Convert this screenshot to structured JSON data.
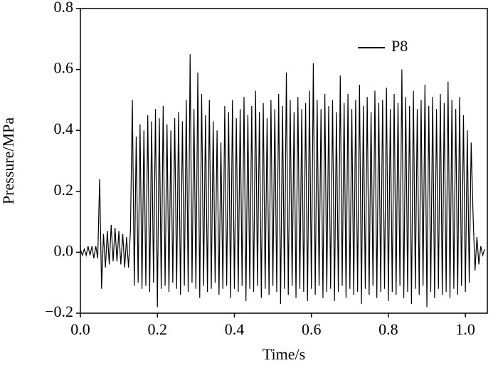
{
  "chart_data": {
    "type": "line",
    "xlabel": "Time/s",
    "ylabel": "Pressure/MPa",
    "xlim": [
      0,
      1.057
    ],
    "ylim": [
      -0.2,
      0.8
    ],
    "xticks": [
      {
        "value": 0,
        "label": "0.0"
      },
      {
        "value": 0.2,
        "label": "0.2"
      },
      {
        "value": 0.4,
        "label": "0.4"
      },
      {
        "value": 0.6,
        "label": "0.6"
      },
      {
        "value": 0.8,
        "label": "0.8"
      },
      {
        "value": 1,
        "label": "1.0"
      }
    ],
    "yticks": [
      {
        "value": -0.2,
        "label": "−0.2"
      },
      {
        "value": 0,
        "label": "0.0"
      },
      {
        "value": 0.2,
        "label": "0.2"
      },
      {
        "value": 0.4,
        "label": "0.4"
      },
      {
        "value": 0.6,
        "label": "0.6"
      },
      {
        "value": 0.8,
        "label": "0.8"
      }
    ],
    "legend": "upper right",
    "grid": false,
    "x": [
      0,
      0.005,
      0.01,
      0.015,
      0.02,
      0.025,
      0.03,
      0.035,
      0.04,
      0.045,
      0.05,
      0.055,
      0.06,
      0.065,
      0.07,
      0.075,
      0.08,
      0.085,
      0.09,
      0.095,
      0.1,
      0.105,
      0.11,
      0.115,
      0.12,
      0.125,
      0.13,
      0.135,
      0.14,
      0.145,
      0.15,
      0.155,
      0.16,
      0.165,
      0.17,
      0.175,
      0.18,
      0.185,
      0.19,
      0.195,
      0.2,
      0.205,
      0.21,
      0.215,
      0.22,
      0.225,
      0.23,
      0.235,
      0.24,
      0.245,
      0.25,
      0.255,
      0.26,
      0.265,
      0.27,
      0.275,
      0.28,
      0.285,
      0.29,
      0.295,
      0.3,
      0.305,
      0.31,
      0.315,
      0.32,
      0.325,
      0.33,
      0.335,
      0.34,
      0.345,
      0.35,
      0.355,
      0.36,
      0.365,
      0.37,
      0.375,
      0.38,
      0.385,
      0.39,
      0.395,
      0.4,
      0.405,
      0.41,
      0.415,
      0.42,
      0.425,
      0.43,
      0.435,
      0.44,
      0.445,
      0.45,
      0.455,
      0.46,
      0.465,
      0.47,
      0.475,
      0.48,
      0.485,
      0.49,
      0.495,
      0.5,
      0.505,
      0.51,
      0.515,
      0.52,
      0.525,
      0.53,
      0.535,
      0.54,
      0.545,
      0.55,
      0.555,
      0.56,
      0.565,
      0.57,
      0.575,
      0.58,
      0.585,
      0.59,
      0.595,
      0.6,
      0.605,
      0.61,
      0.615,
      0.62,
      0.625,
      0.63,
      0.635,
      0.64,
      0.645,
      0.65,
      0.655,
      0.66,
      0.665,
      0.67,
      0.675,
      0.68,
      0.685,
      0.69,
      0.695,
      0.7,
      0.705,
      0.71,
      0.715,
      0.72,
      0.725,
      0.73,
      0.735,
      0.74,
      0.745,
      0.75,
      0.755,
      0.76,
      0.765,
      0.77,
      0.775,
      0.78,
      0.785,
      0.79,
      0.795,
      0.8,
      0.805,
      0.81,
      0.815,
      0.82,
      0.825,
      0.83,
      0.835,
      0.84,
      0.845,
      0.85,
      0.855,
      0.86,
      0.865,
      0.87,
      0.875,
      0.88,
      0.885,
      0.89,
      0.895,
      0.9,
      0.905,
      0.91,
      0.915,
      0.92,
      0.925,
      0.93,
      0.935,
      0.94,
      0.945,
      0.95,
      0.955,
      0.96,
      0.965,
      0.97,
      0.975,
      0.98,
      0.985,
      0.99,
      0.995,
      1,
      1.005,
      1.01,
      1.015,
      1.02,
      1.025,
      1.03,
      1.035,
      1.04,
      1.045,
      1.05
    ],
    "series": [
      {
        "name": "P8",
        "color": "#000000",
        "values": [
          0.01,
          -0.01,
          0.01,
          -0.01,
          0.02,
          -0.01,
          0.02,
          -0.02,
          0.02,
          -0.02,
          0.24,
          -0.12,
          0.06,
          -0.05,
          0.07,
          -0.04,
          0.09,
          -0.03,
          0.08,
          -0.03,
          0.07,
          -0.04,
          0.06,
          -0.05,
          0.05,
          -0.05,
          0.07,
          0.5,
          -0.11,
          0.38,
          -0.1,
          0.42,
          -0.12,
          0.4,
          -0.11,
          0.45,
          -0.13,
          0.43,
          -0.1,
          0.47,
          -0.18,
          0.44,
          -0.12,
          0.48,
          -0.11,
          0.42,
          -0.13,
          0.4,
          -0.1,
          0.44,
          -0.12,
          0.46,
          -0.14,
          0.43,
          -0.11,
          0.5,
          -0.13,
          0.65,
          -0.1,
          0.47,
          -0.12,
          0.59,
          -0.15,
          0.52,
          -0.11,
          0.45,
          -0.13,
          0.5,
          -0.12,
          0.43,
          -0.1,
          0.4,
          -0.14,
          0.36,
          -0.12,
          0.48,
          -0.11,
          0.46,
          -0.15,
          0.5,
          -0.12,
          0.44,
          -0.13,
          0.47,
          -0.11,
          0.51,
          -0.16,
          0.45,
          -0.12,
          0.48,
          -0.13,
          0.53,
          -0.11,
          0.46,
          -0.15,
          0.49,
          -0.12,
          0.44,
          -0.14,
          0.5,
          -0.11,
          0.47,
          -0.13,
          0.52,
          -0.17,
          0.48,
          -0.12,
          0.59,
          -0.14,
          0.5,
          -0.11,
          0.46,
          -0.15,
          0.51,
          -0.12,
          0.47,
          -0.13,
          0.49,
          -0.16,
          0.53,
          -0.12,
          0.62,
          -0.14,
          0.5,
          -0.11,
          0.47,
          -0.15,
          0.52,
          -0.13,
          0.48,
          -0.12,
          0.5,
          -0.16,
          0.46,
          -0.13,
          0.58,
          -0.11,
          0.49,
          -0.15,
          0.52,
          -0.12,
          0.47,
          -0.14,
          0.5,
          -0.13,
          0.55,
          -0.17,
          0.48,
          -0.12,
          0.51,
          -0.14,
          0.46,
          -0.11,
          0.53,
          -0.15,
          0.49,
          -0.13,
          0.5,
          -0.12,
          0.54,
          -0.16,
          0.47,
          -0.13,
          0.52,
          -0.14,
          0.49,
          -0.11,
          0.6,
          -0.15,
          0.51,
          -0.13,
          0.48,
          -0.17,
          0.53,
          -0.12,
          0.47,
          -0.14,
          0.5,
          -0.11,
          0.55,
          -0.18,
          0.48,
          -0.13,
          0.51,
          -0.15,
          0.47,
          -0.12,
          0.52,
          -0.14,
          0.49,
          -0.13,
          0.56,
          -0.15,
          0.5,
          -0.12,
          0.47,
          -0.14,
          0.51,
          -0.11,
          0.45,
          -0.13,
          0.4,
          -0.1,
          0.36,
          0.12,
          -0.06,
          0.05,
          -0.04,
          0.02,
          -0.01,
          0.01
        ]
      }
    ]
  }
}
